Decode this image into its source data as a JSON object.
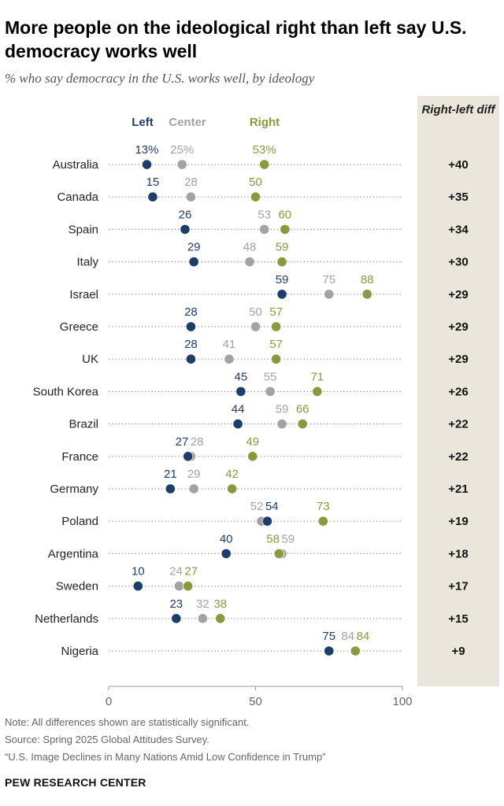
{
  "title": "More people on the ideological right than left say U.S. democracy works well",
  "subtitle": "% who say democracy in the U.S. works well, by ideology",
  "diff_header": "Right-left diff",
  "chart_data": {
    "type": "scatter",
    "title": "More people on the ideological right than left say U.S. democracy works well",
    "subtitle": "% who say democracy in the U.S. works well, by ideology",
    "xlim": [
      0,
      100
    ],
    "x_ticks": [
      0,
      50,
      100
    ],
    "series_colors": {
      "Left": "#1c3d6e",
      "Center": "#a3a3a3",
      "Right": "#8a9a3b"
    },
    "legend": [
      "Left",
      "Center",
      "Right"
    ],
    "diff_header": "Right-left diff",
    "rows": [
      {
        "country": "Australia",
        "left": 13,
        "center": 25,
        "right": 53,
        "diff": "+40",
        "left_label": "13%",
        "center_label": "25%",
        "right_label": "53%"
      },
      {
        "country": "Canada",
        "left": 15,
        "center": 28,
        "right": 50,
        "diff": "+35",
        "left_label": "15",
        "center_label": "28",
        "right_label": "50"
      },
      {
        "country": "Spain",
        "left": 26,
        "center": 53,
        "right": 60,
        "diff": "+34",
        "left_label": "26",
        "center_label": "53",
        "right_label": "60"
      },
      {
        "country": "Italy",
        "left": 29,
        "center": 48,
        "right": 59,
        "diff": "+30",
        "left_label": "29",
        "center_label": "48",
        "right_label": "59"
      },
      {
        "country": "Israel",
        "left": 59,
        "center": 75,
        "right": 88,
        "diff": "+29",
        "left_label": "59",
        "center_label": "75",
        "right_label": "88"
      },
      {
        "country": "Greece",
        "left": 28,
        "center": 50,
        "right": 57,
        "diff": "+29",
        "left_label": "28",
        "center_label": "50",
        "right_label": "57"
      },
      {
        "country": "UK",
        "left": 28,
        "center": 41,
        "right": 57,
        "diff": "+29",
        "left_label": "28",
        "center_label": "41",
        "right_label": "57"
      },
      {
        "country": "South Korea",
        "left": 45,
        "center": 55,
        "right": 71,
        "diff": "+26",
        "left_label": "45",
        "center_label": "55",
        "right_label": "71"
      },
      {
        "country": "Brazil",
        "left": 44,
        "center": 59,
        "right": 66,
        "diff": "+22",
        "left_label": "44",
        "center_label": "59",
        "right_label": "66"
      },
      {
        "country": "France",
        "left": 27,
        "center": 28,
        "right": 49,
        "diff": "+22",
        "left_label": "27",
        "center_label": "28",
        "right_label": "49"
      },
      {
        "country": "Germany",
        "left": 21,
        "center": 29,
        "right": 42,
        "diff": "+21",
        "left_label": "21",
        "center_label": "29",
        "right_label": "42"
      },
      {
        "country": "Poland",
        "left": 54,
        "center": 52,
        "right": 73,
        "diff": "+19",
        "left_label": "54",
        "center_label": "52",
        "right_label": "73"
      },
      {
        "country": "Argentina",
        "left": 40,
        "center": 59,
        "right": 58,
        "diff": "+18",
        "left_label": "40",
        "center_label": "59",
        "right_label": "58"
      },
      {
        "country": "Sweden",
        "left": 10,
        "center": 24,
        "right": 27,
        "diff": "+17",
        "left_label": "10",
        "center_label": "24",
        "right_label": "27"
      },
      {
        "country": "Netherlands",
        "left": 23,
        "center": 32,
        "right": 38,
        "diff": "+15",
        "left_label": "23",
        "center_label": "32",
        "right_label": "38"
      },
      {
        "country": "Nigeria",
        "left": 75,
        "center": 84,
        "right": 84,
        "diff": "+9",
        "left_label": "75",
        "center_label": "84",
        "right_label": "84"
      }
    ]
  },
  "notes": {
    "note": "Note: All differences shown are statistically significant.",
    "source": "Source: Spring 2025 Global Attitudes Survey.",
    "report": "“U.S. Image Declines in Many Nations Amid Low Confidence in Trump”"
  },
  "brand": "PEW RESEARCH CENTER"
}
